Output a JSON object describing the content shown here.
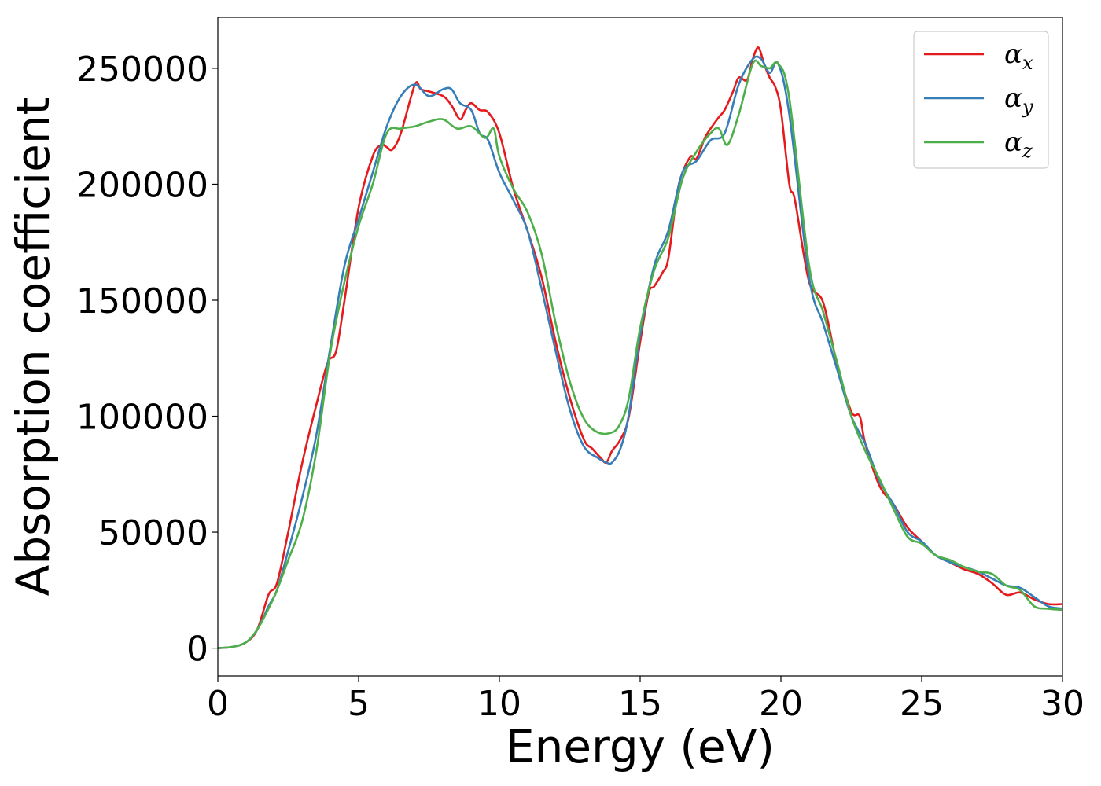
{
  "chart_data": {
    "type": "line",
    "xlabel": "Energy (eV)",
    "ylabel": "Absorption coefficient",
    "xlim": [
      0,
      30
    ],
    "ylim": [
      -12000,
      272000
    ],
    "xticks": [
      0,
      5,
      10,
      15,
      20,
      25,
      30
    ],
    "yticks": [
      0,
      50000,
      100000,
      150000,
      200000,
      250000
    ],
    "grid": false,
    "legend_position": "top-right",
    "series": [
      {
        "name": "α",
        "subscript": "x",
        "color": "#e41a1c",
        "x": [
          0,
          0.5,
          1.0,
          1.4,
          1.8,
          2.1,
          2.5,
          3.0,
          3.5,
          3.9,
          4.2,
          4.5,
          5.0,
          5.5,
          5.8,
          6.0,
          6.2,
          6.5,
          7.0,
          7.2,
          7.5,
          8.0,
          8.3,
          8.6,
          8.8,
          9.0,
          9.3,
          9.6,
          10.0,
          10.5,
          11.0,
          11.5,
          12.0,
          12.5,
          13.0,
          13.3,
          13.6,
          13.8,
          14.0,
          14.3,
          14.6,
          15.0,
          15.3,
          15.5,
          15.8,
          16.0,
          16.3,
          16.5,
          16.8,
          17.0,
          17.3,
          17.5,
          17.8,
          18.0,
          18.3,
          18.5,
          18.8,
          19.0,
          19.2,
          19.4,
          19.6,
          19.8,
          20.0,
          20.3,
          20.5,
          21.0,
          21.5,
          22.0,
          22.5,
          22.8,
          23.0,
          23.5,
          24.0,
          24.5,
          25.0,
          25.5,
          26.0,
          26.5,
          27.0,
          27.5,
          28.0,
          28.5,
          29.0,
          29.5,
          30.0
        ],
        "y": [
          0,
          500,
          2500,
          8000,
          23000,
          28000,
          50000,
          80000,
          105000,
          123000,
          128000,
          150000,
          190000,
          212000,
          217000,
          216000,
          215000,
          222000,
          243000,
          241000,
          240000,
          238000,
          234000,
          228000,
          232000,
          235000,
          232000,
          231000,
          222000,
          198000,
          180000,
          160000,
          132000,
          108000,
          90000,
          86000,
          82000,
          80000,
          85000,
          90000,
          100000,
          132000,
          153000,
          156000,
          162000,
          168000,
          195000,
          205000,
          212000,
          211000,
          220000,
          224000,
          229000,
          232000,
          240000,
          246000,
          245000,
          254000,
          259000,
          252000,
          246000,
          242000,
          232000,
          200000,
          193000,
          158000,
          149000,
          122000,
          102000,
          100000,
          88000,
          70000,
          62000,
          52000,
          46000,
          40000,
          37000,
          34000,
          32000,
          28000,
          23000,
          24000,
          21000,
          19000,
          19000
        ]
      },
      {
        "name": "α",
        "subscript": "y",
        "color": "#377eb8",
        "x": [
          0,
          0.5,
          1.0,
          1.4,
          1.8,
          2.1,
          2.5,
          3.0,
          3.5,
          4.0,
          4.5,
          5.0,
          5.5,
          6.0,
          6.5,
          7.0,
          7.5,
          8.0,
          8.3,
          8.6,
          9.0,
          9.3,
          9.6,
          10.0,
          10.5,
          11.0,
          11.5,
          12.0,
          12.5,
          13.0,
          13.5,
          13.8,
          14.0,
          14.3,
          14.6,
          15.0,
          15.5,
          16.0,
          16.5,
          17.0,
          17.5,
          18.0,
          18.5,
          19.0,
          19.3,
          19.6,
          19.9,
          20.3,
          21.0,
          21.5,
          22.0,
          22.5,
          23.0,
          23.5,
          24.0,
          24.5,
          25.0,
          25.5,
          26.0,
          26.5,
          27.0,
          27.5,
          28.0,
          28.5,
          29.0,
          29.5,
          30.0
        ],
        "y": [
          0,
          500,
          2500,
          8000,
          18000,
          25000,
          42000,
          65000,
          92000,
          130000,
          165000,
          185000,
          205000,
          225000,
          238000,
          243000,
          238000,
          241000,
          241000,
          235000,
          232000,
          222000,
          219000,
          205000,
          193000,
          180000,
          155000,
          128000,
          103000,
          87000,
          82000,
          80000,
          80000,
          86000,
          101000,
          135000,
          165000,
          180000,
          205000,
          210000,
          219000,
          222000,
          243000,
          254000,
          254000,
          248000,
          252000,
          230000,
          160000,
          140000,
          120000,
          100000,
          88000,
          72000,
          62000,
          50000,
          46000,
          40000,
          37000,
          35000,
          33000,
          30000,
          27000,
          26000,
          22000,
          18000,
          17000
        ]
      },
      {
        "name": "α",
        "subscript": "z",
        "color": "#4daf4a",
        "x": [
          0,
          0.5,
          1.0,
          1.4,
          1.8,
          2.1,
          2.5,
          3.0,
          3.5,
          4.0,
          4.5,
          5.0,
          5.5,
          6.0,
          6.5,
          7.0,
          7.5,
          8.0,
          8.5,
          9.0,
          9.5,
          9.8,
          10.0,
          10.5,
          11.0,
          11.5,
          12.0,
          12.5,
          13.0,
          13.5,
          14.0,
          14.3,
          14.6,
          15.0,
          15.5,
          16.0,
          16.5,
          17.0,
          17.5,
          17.8,
          18.1,
          18.5,
          19.0,
          19.3,
          19.6,
          19.9,
          20.3,
          21.0,
          21.5,
          22.0,
          22.5,
          23.0,
          23.5,
          24.0,
          24.5,
          25.0,
          25.5,
          26.0,
          26.5,
          27.0,
          27.5,
          28.0,
          28.5,
          29.0,
          29.5,
          30.0
        ],
        "y": [
          0,
          500,
          2500,
          8000,
          17000,
          25000,
          38000,
          55000,
          85000,
          128000,
          158000,
          182000,
          200000,
          222000,
          224000,
          225000,
          227000,
          228000,
          224000,
          225000,
          220000,
          224000,
          212000,
          198000,
          188000,
          170000,
          140000,
          115000,
          99000,
          93000,
          93000,
          97000,
          108000,
          138000,
          163000,
          177000,
          202000,
          214000,
          222000,
          224000,
          217000,
          230000,
          252000,
          251000,
          250000,
          252000,
          237000,
          165000,
          145000,
          123000,
          100000,
          85000,
          73000,
          60000,
          48000,
          45000,
          40000,
          38000,
          35000,
          33000,
          32000,
          27000,
          25000,
          18000,
          17000,
          16500
        ]
      }
    ]
  }
}
